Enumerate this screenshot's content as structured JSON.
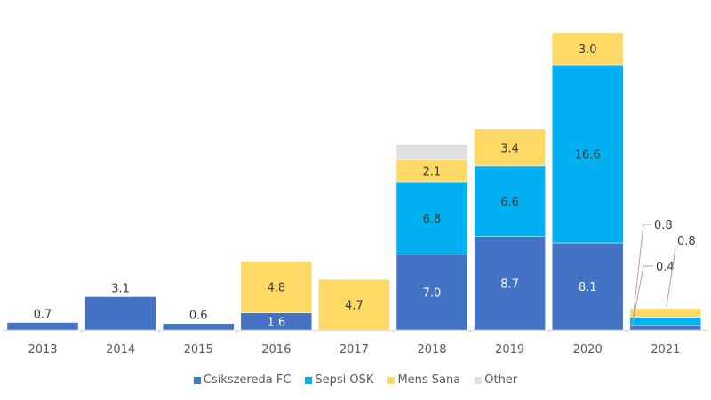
{
  "chart_data": {
    "type": "bar",
    "stacked": true,
    "title": "",
    "xlabel": "",
    "ylabel": "",
    "ylim": [
      0,
      28.5
    ],
    "grid": false,
    "legend_position": "bottom",
    "categories": [
      "2013",
      "2014",
      "2015",
      "2016",
      "2017",
      "2018",
      "2019",
      "2020",
      "2021"
    ],
    "series": [
      {
        "name": "Csíkszereda FC",
        "color": "#4472c4",
        "values": [
          0.7,
          3.1,
          0.6,
          1.6,
          0,
          7.0,
          8.7,
          8.1,
          0.4
        ],
        "labels": [
          "0.7",
          "3.1",
          "0.6",
          "1.6",
          "",
          "7.0",
          "8.7",
          "8.1",
          "0.4"
        ]
      },
      {
        "name": "Sepsi OSK",
        "color": "#00b0f0",
        "values": [
          0,
          0,
          0,
          0,
          0,
          6.8,
          6.6,
          16.6,
          0.8
        ],
        "labels": [
          "",
          "",
          "",
          "",
          "",
          "6.8",
          "6.6",
          "16.6",
          "0.8"
        ]
      },
      {
        "name": "Mens Sana",
        "color": "#ffd966",
        "values": [
          0,
          0,
          0,
          4.8,
          4.7,
          2.1,
          3.4,
          3.0,
          0.8
        ],
        "labels": [
          "",
          "",
          "",
          "4.8",
          "4.7",
          "2.1",
          "3.4",
          "3.0",
          "0.8"
        ]
      },
      {
        "name": "Other",
        "color": "#e0e0e0",
        "values": [
          0,
          0,
          0,
          0,
          0,
          1.4,
          0,
          0,
          0
        ],
        "labels": [
          "",
          "",
          "",
          "",
          "",
          "",
          "",
          "",
          ""
        ]
      }
    ]
  }
}
